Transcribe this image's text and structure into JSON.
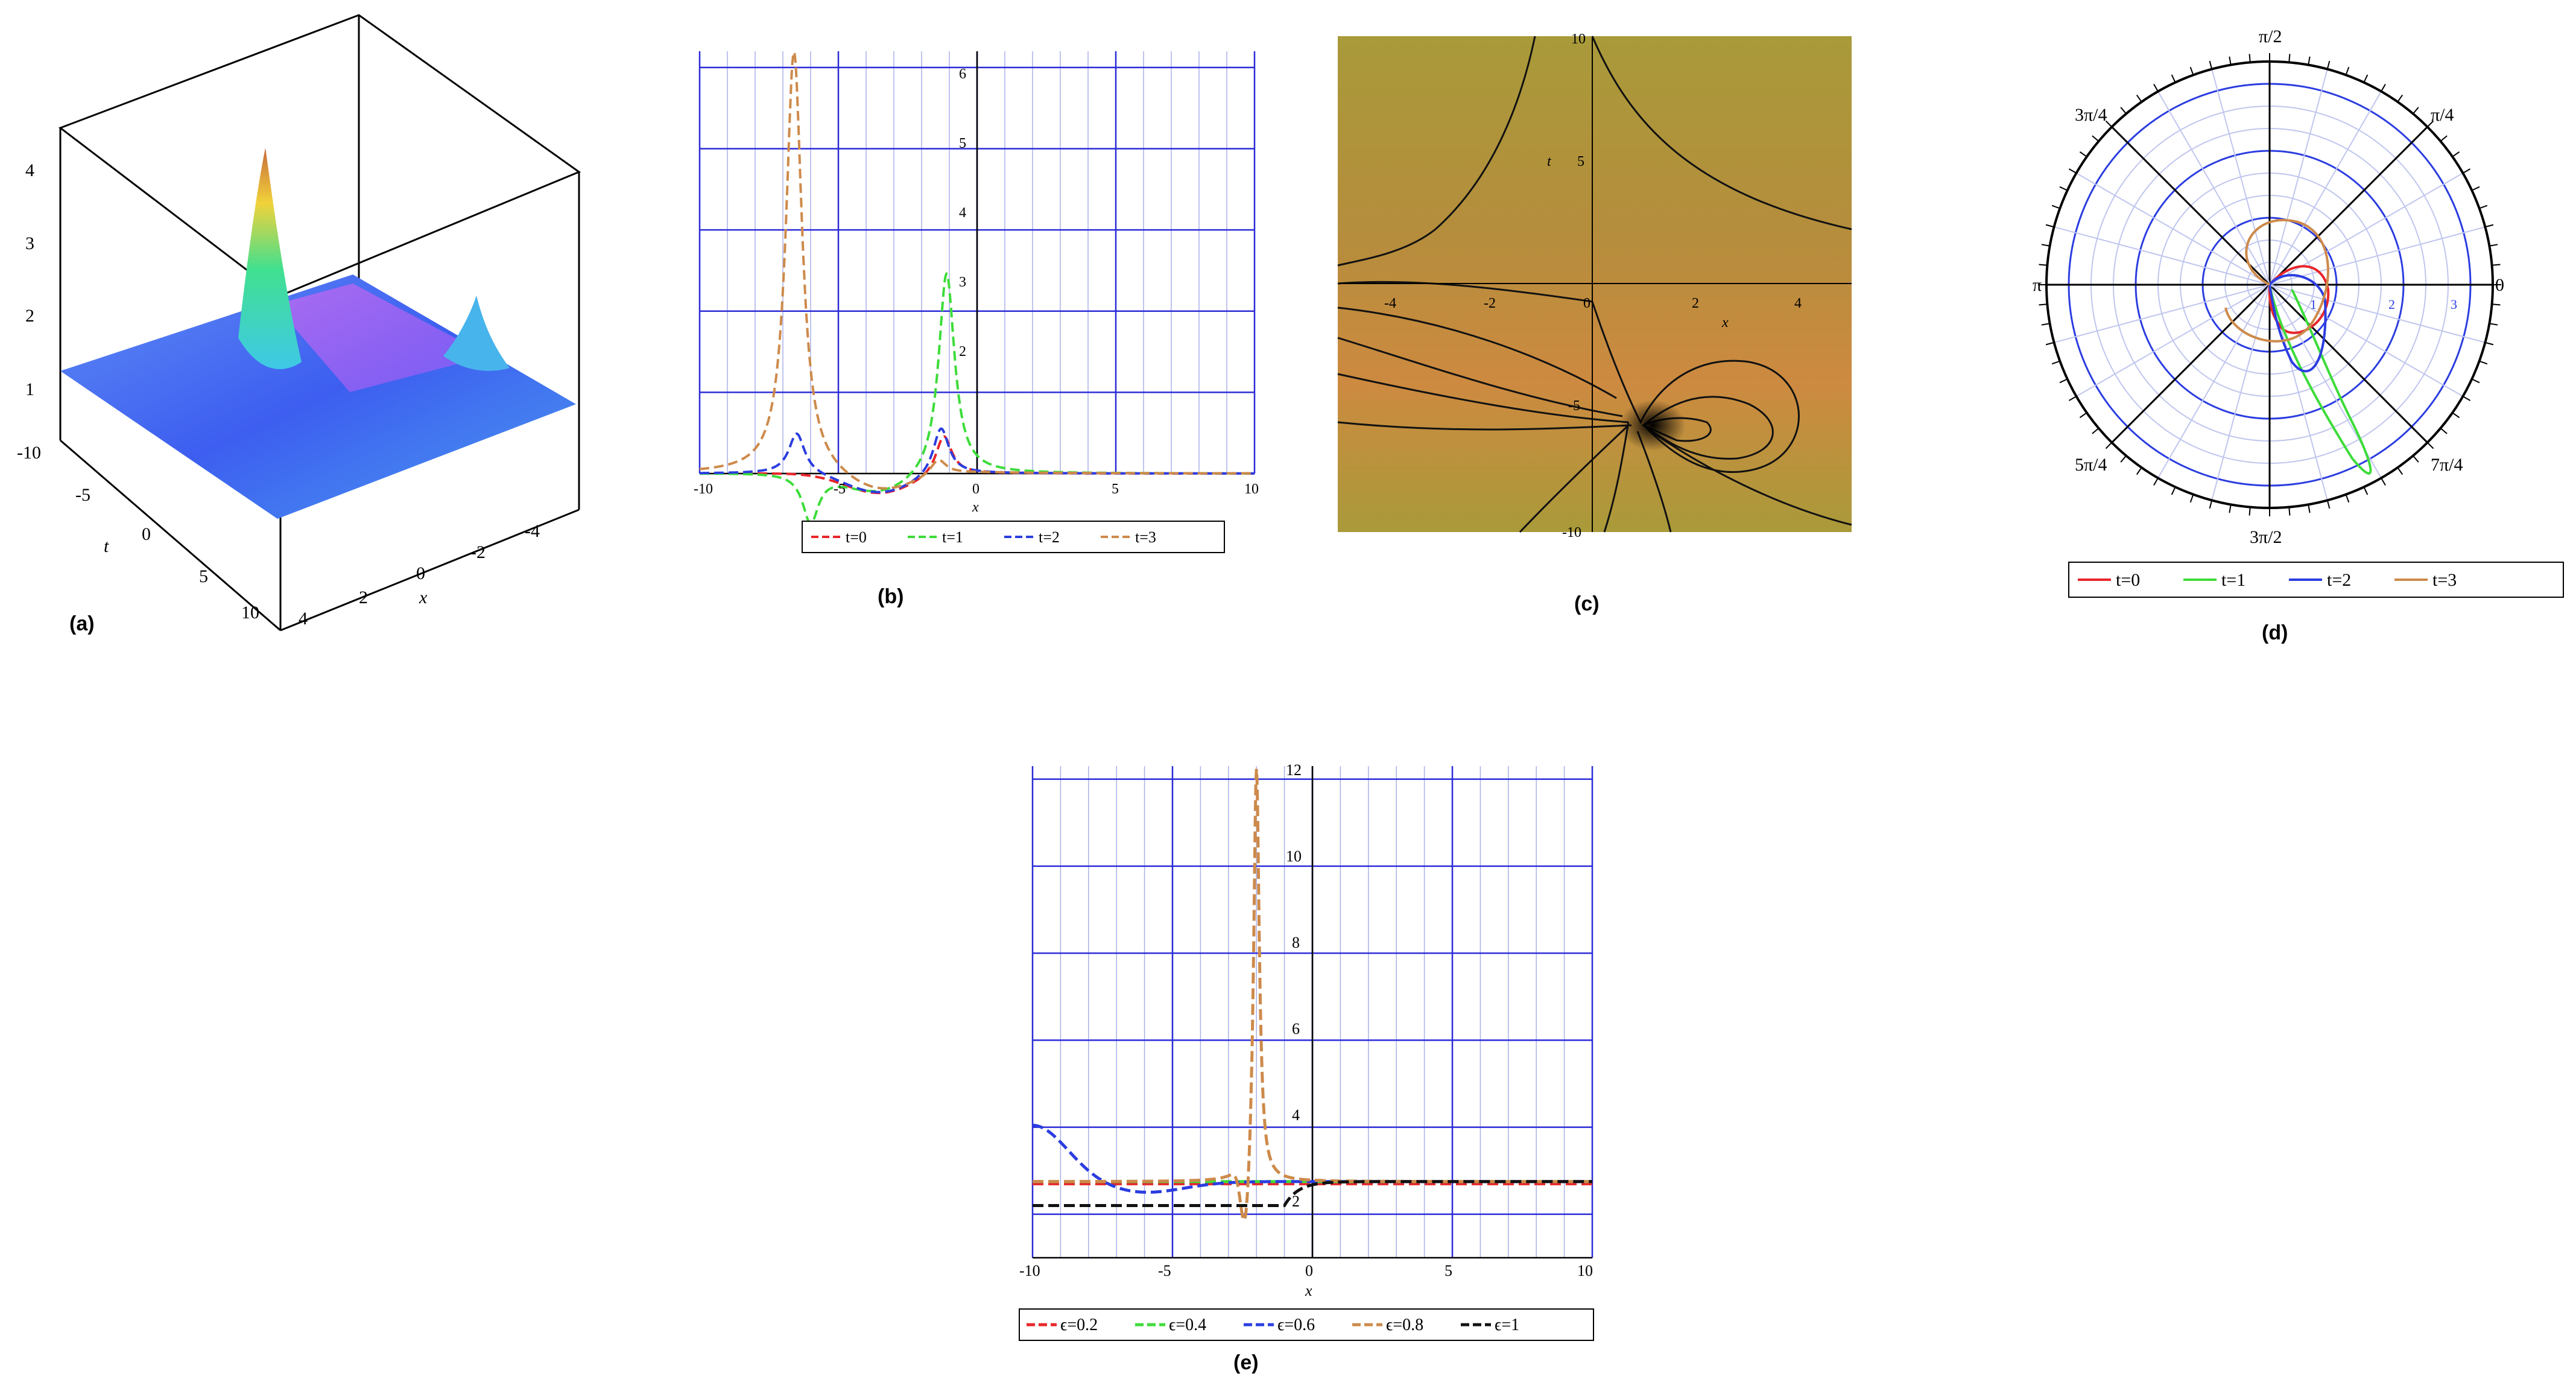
{
  "panels": {
    "a": {
      "label": "(a)",
      "xlabel": "x",
      "ylabel": "t",
      "z_ticks": [
        "1",
        "2",
        "3",
        "4"
      ],
      "t_ticks": [
        "-10",
        "-5",
        "0",
        "5",
        "10"
      ],
      "x_ticks": [
        "4",
        "2",
        "0",
        "-2",
        "-4"
      ]
    },
    "b": {
      "label": "(b)",
      "xlabel": "x",
      "x_ticks": [
        "-10",
        "-5",
        "0",
        "5",
        "10"
      ],
      "y_ticks": [
        "2",
        "3",
        "4",
        "5",
        "6"
      ],
      "legend": [
        "t=0",
        "t=1",
        "t=2",
        "t=3"
      ]
    },
    "c": {
      "label": "(c)",
      "xlabel": "x",
      "ylabel": "t",
      "x_ticks": [
        "-4",
        "-2",
        "0",
        "2",
        "4"
      ],
      "y_ticks": [
        "10",
        "5",
        "-5",
        "-10"
      ]
    },
    "d": {
      "label": "(d)",
      "angle_labels": [
        "0",
        "π/4",
        "π/2",
        "3π/4",
        "π",
        "5π/4",
        "3π/2",
        "7π/4"
      ],
      "radial_ticks": [
        "1",
        "2",
        "3"
      ],
      "legend": [
        "t=0",
        "t=1",
        "t=2",
        "t=3"
      ]
    },
    "e": {
      "label": "(e)",
      "xlabel": "x",
      "x_ticks": [
        "-10",
        "-5",
        "0",
        "5",
        "10"
      ],
      "y_ticks": [
        "2",
        "4",
        "6",
        "8",
        "10",
        "12"
      ],
      "legend": [
        "ϵ=0.2",
        "ϵ=0.4",
        "ϵ=0.6",
        "ϵ=0.8",
        "ϵ=1"
      ]
    }
  },
  "colors": {
    "red": "#e8262a",
    "green": "#3ddc3a",
    "blue": "#2b3de0",
    "orange": "#cd8a4b",
    "black": "#111111",
    "grid": "#2b2bd8",
    "gridlight": "#aab0e8",
    "surface": "#3d6bf0",
    "peak": "#f4c52a",
    "contourbg": "#b98f3a"
  },
  "chart_data": [
    {
      "panel": "b",
      "type": "line",
      "xlim": [
        -10,
        10
      ],
      "ylim": [
        1,
        6.2
      ],
      "series": [
        {
          "name": "t=0",
          "peaks": [
            [
              -1.2,
              1.5
            ]
          ]
        },
        {
          "name": "t=1",
          "peaks": [
            [
              -1.1,
              3.5
            ],
            [
              -6.0,
              0.4
            ]
          ]
        },
        {
          "name": "t=2",
          "peaks": [
            [
              -1.3,
              1.6
            ],
            [
              -6.5,
              1.5
            ]
          ]
        },
        {
          "name": "t=3",
          "peaks": [
            [
              -6.6,
              6.2
            ],
            [
              -1.4,
              1.2
            ]
          ]
        }
      ]
    },
    {
      "panel": "e",
      "type": "line",
      "xlim": [
        -10,
        10
      ],
      "ylim": [
        1,
        12.3
      ],
      "series": [
        {
          "name": "ϵ=0.2",
          "baseline": 2.7
        },
        {
          "name": "ϵ=0.4",
          "baseline": 2.75
        },
        {
          "name": "ϵ=0.6",
          "baseline": 2.75
        },
        {
          "name": "ϵ=0.8",
          "peak": [
            -2,
            12.3
          ],
          "dip": [
            -2.4,
            1.2
          ]
        },
        {
          "name": "ϵ=1",
          "baseline": 2.2
        }
      ]
    }
  ]
}
